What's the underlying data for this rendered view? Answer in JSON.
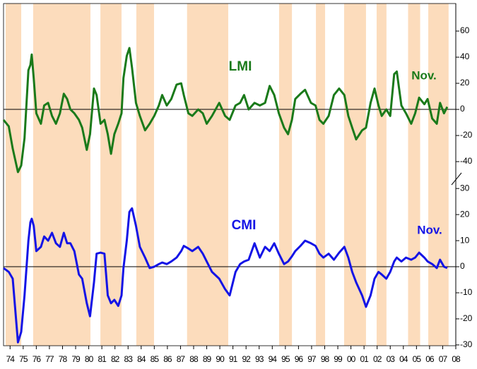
{
  "chart_data": [
    {
      "type": "line",
      "x": [
        1974.0,
        1974.4,
        1974.7,
        1975.1,
        1975.35,
        1975.6,
        1975.9,
        1976.05,
        1976.15,
        1976.3,
        1976.5,
        1976.85,
        1977.1,
        1977.4,
        1977.7,
        1978.0,
        1978.3,
        1978.6,
        1978.85,
        1979.1,
        1979.4,
        1979.75,
        1980.0,
        1980.35,
        1980.6,
        1980.9,
        1981.1,
        1981.4,
        1981.7,
        1981.95,
        1982.2,
        1982.45,
        1982.75,
        1983.0,
        1983.15,
        1983.4,
        1983.6,
        1983.8,
        1984.1,
        1984.4,
        1984.8,
        1985.15,
        1985.5,
        1985.85,
        1986.1,
        1986.45,
        1986.8,
        1987.2,
        1987.55,
        1987.75,
        1988.1,
        1988.4,
        1988.85,
        1989.2,
        1989.5,
        1989.9,
        1990.45,
        1990.9,
        1991.25,
        1991.7,
        1992.05,
        1992.35,
        1992.7,
        1993.15,
        1993.55,
        1993.95,
        1994.3,
        1994.65,
        1995.0,
        1995.4,
        1995.7,
        1996.0,
        1996.25,
        1996.65,
        1997.0,
        1997.45,
        1997.8,
        1998.1,
        1998.4,
        1998.8,
        1999.2,
        1999.6,
        2000.0,
        2000.3,
        2000.6,
        2000.9,
        2001.35,
        2001.65,
        2002.0,
        2002.3,
        2002.6,
        2002.85,
        2003.2,
        2003.5,
        2003.8,
        2004.0,
        2004.35,
        2004.7,
        2005.1,
        2005.4,
        2005.7,
        2006.1,
        2006.35,
        2006.7,
        2007.05,
        2007.3,
        2007.6,
        2007.85
      ],
      "series": [
        {
          "name": "LMI",
          "color": "#1a7a1a",
          "values": [
            -8,
            -13,
            -30,
            -48,
            -43,
            -22,
            30,
            34,
            42,
            24,
            -3,
            -11,
            3,
            5,
            -5,
            -11,
            -3,
            12,
            8,
            0,
            -3,
            -8,
            -14,
            -31,
            -19,
            16,
            11,
            -11,
            -8,
            -19,
            -34,
            -19,
            -11,
            -3,
            24,
            41,
            47,
            32,
            5,
            -5,
            -16,
            -11,
            -5,
            3,
            11,
            3,
            8,
            19,
            20,
            11,
            -3,
            -5,
            0,
            -3,
            -11,
            -5,
            5,
            -5,
            -8,
            3,
            5,
            11,
            0,
            5,
            3,
            5,
            18,
            11,
            -3,
            -14,
            -19,
            -8,
            8,
            12,
            15,
            5,
            3,
            -8,
            -11,
            -5,
            11,
            16,
            11,
            -5,
            -14,
            -23,
            -16,
            -14,
            5,
            16,
            3,
            -5,
            0,
            -5,
            27,
            29,
            3,
            -3,
            -11,
            -3,
            9,
            4,
            8,
            -7,
            -11,
            5,
            -3,
            2
          ]
        }
      ],
      "annotations": [
        "LMI",
        "Nov."
      ],
      "xlim": [
        1974,
        2008.5
      ],
      "ylim": [
        -57.8,
        81.1
      ],
      "yticks": [
        -40,
        -20,
        0,
        20,
        40,
        60
      ],
      "shaded_periods": [
        [
          1974.16,
          1975.35
        ],
        [
          1976.26,
          1980.63
        ],
        [
          1981.39,
          1983.0
        ],
        [
          1984.13,
          1985.48
        ],
        [
          1988.0,
          1991.14
        ],
        [
          1995.02,
          1996.0
        ],
        [
          1997.83,
          1998.53
        ],
        [
          1999.98,
          2001.65
        ],
        [
          2002.46,
          2003.21
        ],
        [
          2004.86,
          2005.78
        ],
        [
          2006.4,
          2007.95
        ]
      ],
      "shading_color": "#fcdcbc"
    },
    {
      "type": "line",
      "x": [
        1974.0,
        1974.4,
        1974.7,
        1975.1,
        1975.35,
        1975.6,
        1975.9,
        1976.05,
        1976.15,
        1976.3,
        1976.5,
        1976.85,
        1977.1,
        1977.4,
        1977.7,
        1978.0,
        1978.3,
        1978.6,
        1978.85,
        1979.1,
        1979.4,
        1979.75,
        1980.0,
        1980.35,
        1980.6,
        1980.9,
        1981.1,
        1981.4,
        1981.7,
        1981.95,
        1982.2,
        1982.45,
        1982.75,
        1983.0,
        1983.15,
        1983.4,
        1983.6,
        1983.8,
        1984.1,
        1984.4,
        1984.8,
        1985.15,
        1985.5,
        1985.85,
        1986.1,
        1986.45,
        1986.8,
        1987.2,
        1987.55,
        1987.75,
        1988.1,
        1988.4,
        1988.85,
        1989.2,
        1989.5,
        1989.9,
        1990.45,
        1990.9,
        1991.25,
        1991.7,
        1992.05,
        1992.35,
        1992.7,
        1993.15,
        1993.55,
        1993.95,
        1994.3,
        1994.65,
        1995.0,
        1995.4,
        1995.7,
        1996.0,
        1996.25,
        1996.65,
        1997.0,
        1997.45,
        1997.8,
        1998.1,
        1998.4,
        1998.8,
        1999.2,
        1999.6,
        2000.0,
        2000.3,
        2000.6,
        2000.9,
        2001.35,
        2001.65,
        2002.0,
        2002.3,
        2002.6,
        2002.85,
        2003.2,
        2003.5,
        2003.8,
        2004.0,
        2004.35,
        2004.7,
        2005.1,
        2005.4,
        2005.7,
        2006.1,
        2006.35,
        2006.7,
        2007.05,
        2007.3,
        2007.6,
        2007.85
      ],
      "series": [
        {
          "name": "CMI",
          "color": "#1414e6",
          "values": [
            -0.5,
            -2,
            -4.6,
            -29,
            -25,
            -11,
            10,
            17,
            18.4,
            15.7,
            6,
            7.6,
            11.6,
            10,
            13,
            9,
            7.6,
            13,
            9,
            9,
            6,
            -3,
            -4.6,
            -14,
            -19,
            -6,
            5,
            5.4,
            5,
            -11,
            -14,
            -12.7,
            -15,
            -11,
            -0.5,
            10,
            21,
            22.4,
            15.7,
            7.6,
            3.5,
            -0.5,
            0,
            1,
            1.6,
            1,
            2,
            3.5,
            6,
            8,
            7,
            6,
            7.6,
            5,
            2,
            -2,
            -4.6,
            -8.6,
            -11,
            -2,
            1,
            2,
            2.7,
            9,
            3.5,
            7.6,
            6,
            9,
            5,
            1,
            2,
            4,
            6,
            8,
            10,
            9,
            8,
            5,
            3.5,
            5,
            2.7,
            5.4,
            7.6,
            3.5,
            -2,
            -6,
            -11,
            -15.4,
            -11,
            -4.6,
            -2,
            -3,
            -4.6,
            -2,
            2,
            3.5,
            2,
            3.5,
            2.7,
            3.5,
            5.4,
            3.5,
            2,
            1,
            -0.5,
            2.7,
            0,
            -0.5
          ]
        }
      ],
      "annotations": [
        "CMI",
        "Nov."
      ],
      "xlim": [
        1974,
        2008.5
      ],
      "ylim": [
        -30.3,
        31.4
      ],
      "yticks": [
        -30,
        -20,
        -10,
        0,
        10,
        20,
        30
      ],
      "xticks": [
        {
          "value": 1974.5,
          "label": "74"
        },
        {
          "value": 1975.5,
          "label": "75"
        },
        {
          "value": 1976.5,
          "label": "76"
        },
        {
          "value": 1977.5,
          "label": "77"
        },
        {
          "value": 1978.5,
          "label": "78"
        },
        {
          "value": 1979.5,
          "label": "79"
        },
        {
          "value": 1980.5,
          "label": "80"
        },
        {
          "value": 1981.5,
          "label": "81"
        },
        {
          "value": 1982.5,
          "label": "82"
        },
        {
          "value": 1983.5,
          "label": "83"
        },
        {
          "value": 1984.5,
          "label": "84"
        },
        {
          "value": 1985.5,
          "label": "85"
        },
        {
          "value": 1986.5,
          "label": "86"
        },
        {
          "value": 1987.5,
          "label": "87"
        },
        {
          "value": 1988.5,
          "label": "88"
        },
        {
          "value": 1989.5,
          "label": "89"
        },
        {
          "value": 1990.5,
          "label": "90"
        },
        {
          "value": 1991.5,
          "label": "91"
        },
        {
          "value": 1992.5,
          "label": "92"
        },
        {
          "value": 1993.5,
          "label": "93"
        },
        {
          "value": 1994.5,
          "label": "94"
        },
        {
          "value": 1995.5,
          "label": "95"
        },
        {
          "value": 1996.5,
          "label": "96"
        },
        {
          "value": 1997.5,
          "label": "97"
        },
        {
          "value": 1998.5,
          "label": "98"
        },
        {
          "value": 1999.5,
          "label": "99"
        },
        {
          "value": 2000.5,
          "label": "00"
        },
        {
          "value": 2001.5,
          "label": "01"
        },
        {
          "value": 2002.5,
          "label": "02"
        },
        {
          "value": 2003.5,
          "label": "03"
        },
        {
          "value": 2004.5,
          "label": "04"
        },
        {
          "value": 2005.5,
          "label": "05"
        },
        {
          "value": 2006.5,
          "label": "06"
        },
        {
          "value": 2007.5,
          "label": "07"
        },
        {
          "value": 2008.5,
          "label": "08"
        }
      ]
    }
  ]
}
